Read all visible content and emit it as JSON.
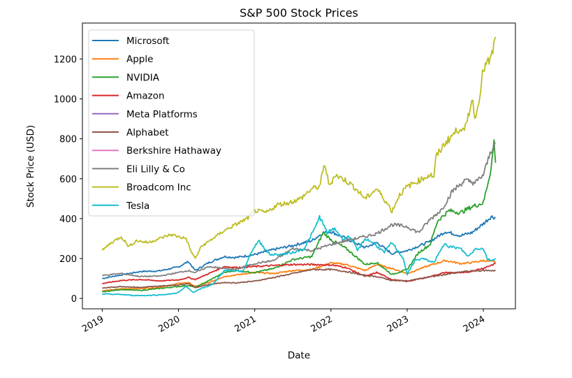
{
  "chart_data": {
    "type": "line",
    "title": "S&P 500 Stock Prices",
    "xlabel": "Date",
    "ylabel": "Stock Price (USD)",
    "xlim": [
      2018.74,
      2024.42
    ],
    "ylim": [
      -52,
      1380
    ],
    "x_ticks": [
      {
        "value": 2019,
        "label": "2019"
      },
      {
        "value": 2020,
        "label": "2020"
      },
      {
        "value": 2021,
        "label": "2021"
      },
      {
        "value": 2022,
        "label": "2022"
      },
      {
        "value": 2023,
        "label": "2023"
      },
      {
        "value": 2024,
        "label": "2024"
      }
    ],
    "y_ticks": [
      {
        "value": 0,
        "label": "0"
      },
      {
        "value": 200,
        "label": "200"
      },
      {
        "value": 400,
        "label": "400"
      },
      {
        "value": 600,
        "label": "600"
      },
      {
        "value": 800,
        "label": "800"
      },
      {
        "value": 1000,
        "label": "1000"
      },
      {
        "value": 1200,
        "label": "1200"
      }
    ],
    "grid": false,
    "legend_position": "upper-left",
    "series": [
      {
        "name": "Microsoft",
        "color": "#1f77b4",
        "x": [
          2019.0,
          2019.25,
          2019.5,
          2019.75,
          2020.0,
          2020.13,
          2020.22,
          2020.4,
          2020.6,
          2020.75,
          2021.0,
          2021.25,
          2021.5,
          2021.75,
          2021.9,
          2022.0,
          2022.2,
          2022.45,
          2022.6,
          2022.8,
          2023.0,
          2023.1,
          2023.3,
          2023.5,
          2023.7,
          2023.85,
          2024.0,
          2024.1,
          2024.16
        ],
        "y": [
          100,
          118,
          135,
          138,
          158,
          185,
          140,
          180,
          210,
          205,
          220,
          245,
          265,
          290,
          330,
          335,
          300,
          255,
          280,
          225,
          240,
          255,
          285,
          335,
          315,
          330,
          375,
          410,
          405
        ]
      },
      {
        "name": "Apple",
        "color": "#ff7f0e",
        "x": [
          2019.0,
          2019.25,
          2019.5,
          2019.75,
          2020.0,
          2020.13,
          2020.22,
          2020.4,
          2020.6,
          2020.7,
          2021.0,
          2021.25,
          2021.5,
          2021.75,
          2022.0,
          2022.2,
          2022.45,
          2022.6,
          2022.8,
          2023.0,
          2023.25,
          2023.5,
          2023.7,
          2023.85,
          2024.0,
          2024.16
        ],
        "y": [
          38,
          48,
          50,
          55,
          75,
          80,
          60,
          80,
          110,
          115,
          130,
          125,
          140,
          145,
          178,
          170,
          140,
          170,
          150,
          125,
          160,
          190,
          175,
          180,
          190,
          182
        ]
      },
      {
        "name": "NVIDIA",
        "color": "#2ca02c",
        "x": [
          2019.0,
          2019.25,
          2019.5,
          2019.75,
          2020.0,
          2020.13,
          2020.22,
          2020.4,
          2020.6,
          2020.75,
          2021.0,
          2021.25,
          2021.5,
          2021.75,
          2021.9,
          2022.0,
          2022.2,
          2022.45,
          2022.6,
          2022.8,
          2023.0,
          2023.15,
          2023.3,
          2023.4,
          2023.55,
          2023.7,
          2023.85,
          2024.0,
          2024.1,
          2024.14,
          2024.16
        ],
        "y": [
          33,
          45,
          40,
          50,
          60,
          65,
          55,
          90,
          130,
          140,
          130,
          150,
          195,
          210,
          330,
          295,
          250,
          170,
          180,
          120,
          145,
          230,
          270,
          390,
          440,
          430,
          460,
          480,
          650,
          790,
          680
        ]
      },
      {
        "name": "Amazon",
        "color": "#d62728",
        "x": [
          2019.0,
          2019.25,
          2019.5,
          2019.75,
          2020.0,
          2020.13,
          2020.22,
          2020.4,
          2020.6,
          2020.75,
          2021.0,
          2021.25,
          2021.5,
          2021.75,
          2022.0,
          2022.2,
          2022.45,
          2022.6,
          2022.8,
          2023.0,
          2023.25,
          2023.5,
          2023.75,
          2024.0,
          2024.16
        ],
        "y": [
          75,
          90,
          95,
          88,
          93,
          105,
          95,
          125,
          160,
          155,
          160,
          165,
          170,
          170,
          168,
          155,
          110,
          130,
          95,
          85,
          105,
          130,
          128,
          152,
          175
        ]
      },
      {
        "name": "Meta Platforms",
        "color": "#9467bd",
        "x": [],
        "y": []
      },
      {
        "name": "Alphabet",
        "color": "#8c564b",
        "x": [
          2019.0,
          2019.25,
          2019.5,
          2019.75,
          2020.0,
          2020.13,
          2020.22,
          2020.4,
          2020.6,
          2020.75,
          2021.0,
          2021.25,
          2021.5,
          2021.75,
          2022.0,
          2022.2,
          2022.45,
          2022.6,
          2022.8,
          2023.0,
          2023.25,
          2023.5,
          2023.75,
          2024.0,
          2024.16
        ],
        "y": [
          52,
          60,
          55,
          62,
          68,
          75,
          55,
          70,
          80,
          78,
          87,
          105,
          125,
          145,
          145,
          135,
          115,
          110,
          90,
          88,
          105,
          120,
          135,
          140,
          140
        ]
      },
      {
        "name": "Berkshire Hathaway",
        "color": "#e377c2",
        "x": [],
        "y": []
      },
      {
        "name": "Eli Lilly & Co",
        "color": "#7f7f7f",
        "x": [
          2019.0,
          2019.25,
          2019.5,
          2019.75,
          2020.0,
          2020.13,
          2020.22,
          2020.4,
          2020.6,
          2020.75,
          2021.0,
          2021.25,
          2021.5,
          2021.75,
          2022.0,
          2022.2,
          2022.45,
          2022.6,
          2022.8,
          2023.0,
          2023.15,
          2023.3,
          2023.45,
          2023.6,
          2023.75,
          2023.9,
          2024.0,
          2024.1,
          2024.16
        ],
        "y": [
          115,
          125,
          110,
          112,
          130,
          140,
          130,
          160,
          150,
          145,
          175,
          190,
          250,
          240,
          270,
          290,
          310,
          325,
          370,
          360,
          330,
          395,
          445,
          540,
          590,
          580,
          620,
          740,
          780
        ]
      },
      {
        "name": "Broadcom Inc",
        "color": "#bcbd22",
        "x": [
          2019.0,
          2019.1,
          2019.25,
          2019.35,
          2019.45,
          2019.6,
          2019.75,
          2019.9,
          2020.0,
          2020.1,
          2020.16,
          2020.22,
          2020.3,
          2020.45,
          2020.6,
          2020.75,
          2020.9,
          2021.0,
          2021.15,
          2021.3,
          2021.45,
          2021.6,
          2021.75,
          2021.85,
          2021.92,
          2021.98,
          2022.05,
          2022.2,
          2022.3,
          2022.45,
          2022.6,
          2022.75,
          2022.8,
          2022.9,
          2023.0,
          2023.15,
          2023.3,
          2023.35,
          2023.38,
          2023.5,
          2023.6,
          2023.7,
          2023.75,
          2023.85,
          2023.9,
          2024.0,
          2024.1,
          2024.16
        ],
        "y": [
          240,
          275,
          310,
          260,
          290,
          280,
          300,
          320,
          310,
          300,
          240,
          200,
          260,
          300,
          340,
          370,
          400,
          440,
          430,
          470,
          480,
          500,
          550,
          560,
          675,
          560,
          620,
          590,
          560,
          500,
          550,
          470,
          437,
          520,
          560,
          590,
          620,
          610,
          710,
          780,
          820,
          860,
          830,
          1000,
          900,
          1150,
          1200,
          1310
        ]
      },
      {
        "name": "Tesla",
        "color": "#17becf",
        "x": [
          2019.0,
          2019.25,
          2019.4,
          2019.6,
          2019.75,
          2019.9,
          2020.0,
          2020.1,
          2020.2,
          2020.3,
          2020.45,
          2020.6,
          2020.7,
          2020.85,
          2020.95,
          2021.05,
          2021.2,
          2021.35,
          2021.5,
          2021.65,
          2021.8,
          2021.85,
          2021.95,
          2022.05,
          2022.15,
          2022.25,
          2022.35,
          2022.45,
          2022.55,
          2022.7,
          2022.8,
          2022.95,
          2023.0,
          2023.1,
          2023.2,
          2023.35,
          2023.5,
          2023.55,
          2023.7,
          2023.8,
          2023.9,
          2024.0,
          2024.05,
          2024.1,
          2024.16
        ],
        "y": [
          22,
          20,
          15,
          15,
          18,
          22,
          30,
          60,
          30,
          50,
          70,
          140,
          140,
          135,
          230,
          290,
          220,
          220,
          230,
          250,
          360,
          410,
          330,
          350,
          300,
          310,
          240,
          300,
          280,
          230,
          280,
          200,
          120,
          190,
          200,
          180,
          280,
          260,
          250,
          210,
          250,
          250,
          200,
          190,
          200
        ]
      }
    ]
  }
}
